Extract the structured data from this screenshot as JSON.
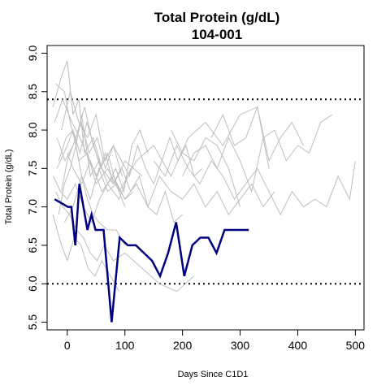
{
  "chart_data": {
    "type": "line",
    "title": "Total Protein (g/dL)",
    "subtitle": "104-001",
    "xlabel": "Days Since C1D1",
    "ylabel": "Total Protein (g/dL)",
    "xlim": [
      -35,
      515
    ],
    "ylim": [
      5.4,
      9.1
    ],
    "xticks": [
      0,
      100,
      200,
      300,
      400,
      500
    ],
    "yticks": [
      5.5,
      6.0,
      6.5,
      7.0,
      7.5,
      8.0,
      8.5,
      9.0
    ],
    "reference_lines": [
      {
        "y": 8.4,
        "style": "dotted",
        "color": "#000080"
      },
      {
        "y": 6.0,
        "style": "dotted",
        "color": "#000080"
      }
    ],
    "highlight_series": {
      "name": "104-001",
      "color": "#000080",
      "x": [
        -22,
        1,
        7,
        14,
        21,
        28,
        35,
        42,
        49,
        63,
        77,
        91,
        105,
        119,
        147,
        161,
        175,
        189,
        203,
        217,
        231,
        245,
        259,
        273,
        315
      ],
      "y": [
        7.1,
        7.0,
        7.0,
        6.5,
        7.3,
        7.0,
        6.7,
        6.9,
        6.7,
        6.7,
        5.5,
        6.6,
        6.5,
        6.5,
        6.3,
        6.1,
        6.4,
        6.8,
        6.1,
        6.5,
        6.6,
        6.6,
        6.4,
        6.7,
        6.7
      ]
    },
    "background_series_color": "#bebebe",
    "background_series": [
      {
        "x": [
          -25,
          -10,
          0,
          10,
          20,
          30,
          45,
          60,
          80,
          100,
          130
        ],
        "y": [
          8.3,
          8.7,
          8.9,
          8.2,
          8.4,
          7.7,
          7.9,
          7.5,
          7.3,
          7.6,
          7.4
        ]
      },
      {
        "x": [
          -20,
          -5,
          5,
          15,
          25,
          40,
          55,
          70,
          90,
          110
        ],
        "y": [
          8.6,
          8.5,
          8.1,
          7.8,
          8.2,
          7.4,
          7.6,
          7.3,
          7.1,
          7.5
        ]
      },
      {
        "x": [
          -18,
          0,
          10,
          20,
          35,
          50,
          70,
          90,
          120,
          150,
          180,
          210,
          240,
          270,
          300,
          330,
          350
        ],
        "y": [
          7.5,
          7.8,
          8.0,
          7.6,
          7.7,
          7.3,
          7.5,
          7.2,
          7.6,
          7.8,
          7.4,
          7.9,
          8.1,
          7.8,
          8.2,
          8.3,
          7.5
        ]
      },
      {
        "x": [
          -15,
          -5,
          5,
          15,
          25,
          35,
          45,
          55,
          70,
          85,
          100
        ],
        "y": [
          6.9,
          7.3,
          7.5,
          7.8,
          7.4,
          7.1,
          6.9,
          6.8,
          6.7,
          6.7,
          6.5
        ]
      },
      {
        "x": [
          -22,
          -8,
          8,
          22,
          38,
          52,
          66,
          80,
          95,
          110,
          125,
          140,
          155,
          170,
          185,
          200
        ],
        "y": [
          8.1,
          8.4,
          8.1,
          7.9,
          7.6,
          7.4,
          7.7,
          7.3,
          7.5,
          7.2,
          7.4,
          7.0,
          6.9,
          7.2,
          6.8,
          6.9
        ]
      },
      {
        "x": [
          -25,
          -10,
          0,
          12,
          24,
          36,
          48,
          60,
          75,
          90
        ],
        "y": [
          6.9,
          6.5,
          6.3,
          6.6,
          6.5,
          6.2,
          6.1,
          6.3,
          6.1,
          5.9
        ]
      },
      {
        "x": [
          -20,
          -8,
          4,
          16,
          28,
          40,
          52,
          64,
          80,
          100,
          130,
          160,
          190,
          220
        ],
        "y": [
          7.2,
          7.0,
          6.9,
          6.7,
          6.6,
          6.4,
          6.3,
          6.5,
          6.3,
          6.4,
          6.2,
          6.0,
          5.9,
          6.1
        ]
      },
      {
        "x": [
          -15,
          -2,
          10,
          22,
          34,
          46,
          58,
          70,
          85,
          100,
          115
        ],
        "y": [
          7.6,
          7.9,
          8.0,
          7.7,
          8.1,
          7.8,
          7.5,
          7.7,
          7.3,
          7.1,
          7.2
        ]
      },
      {
        "x": [
          -24,
          -12,
          0,
          14,
          28,
          42,
          56,
          70,
          84,
          98,
          112,
          126,
          140
        ],
        "y": [
          7.4,
          7.2,
          7.1,
          7.3,
          7.0,
          6.8,
          7.1,
          7.3,
          7.5,
          7.2,
          7.8,
          8.0,
          7.7
        ]
      },
      {
        "x": [
          -10,
          5,
          20,
          35,
          50,
          65,
          80,
          95
        ],
        "y": [
          8.0,
          8.5,
          8.1,
          7.9,
          8.2,
          7.6,
          7.8,
          7.4
        ]
      },
      {
        "x": [
          -18,
          -4,
          10,
          24,
          38,
          52,
          66,
          80,
          94,
          108,
          122,
          136,
          150,
          164,
          178,
          192,
          206,
          220,
          234
        ],
        "y": [
          7.9,
          7.6,
          7.8,
          8.1,
          7.7,
          7.9,
          7.5,
          7.8,
          7.6,
          7.4,
          7.8,
          7.5,
          7.3,
          7.6,
          7.9,
          7.6,
          7.8,
          7.4,
          7.5
        ]
      },
      {
        "x": [
          0,
          10,
          25,
          40,
          60,
          80,
          100,
          120,
          140,
          160,
          180,
          200,
          220,
          240,
          260,
          280,
          300,
          320,
          340,
          360
        ],
        "y": [
          7.7,
          7.5,
          7.3,
          7.6,
          7.2,
          7.4,
          7.1,
          7.3,
          7.0,
          7.4,
          7.2,
          7.1,
          7.3,
          7.0,
          7.2,
          6.9,
          7.1,
          7.3,
          7.0,
          7.2
        ]
      },
      {
        "x": [
          150,
          170,
          190,
          210,
          230,
          250,
          270,
          290,
          310,
          330,
          350,
          370,
          390,
          410,
          430,
          450,
          470,
          490,
          500
        ],
        "y": [
          7.6,
          7.4,
          7.8,
          7.5,
          7.3,
          7.6,
          7.4,
          7.1,
          7.3,
          7.5,
          7.2,
          6.9,
          7.2,
          7.0,
          7.1,
          7.0,
          7.4,
          7.1,
          7.6
        ]
      },
      {
        "x": [
          200,
          220,
          240,
          260,
          280,
          300,
          320,
          340,
          360,
          380,
          400,
          420,
          440,
          460
        ],
        "y": [
          7.4,
          7.7,
          7.8,
          7.5,
          7.9,
          7.6,
          7.2,
          7.9,
          8.0,
          7.6,
          7.8,
          7.7,
          8.1,
          8.2
        ]
      },
      {
        "x": [
          250,
          270,
          290,
          310,
          330,
          350,
          370,
          390,
          410
        ],
        "y": [
          7.9,
          8.2,
          7.8,
          7.9,
          8.3,
          7.6,
          7.9,
          8.1,
          7.8
        ]
      },
      {
        "x": [
          180,
          200,
          220,
          240,
          260,
          280,
          300
        ],
        "y": [
          8.0,
          7.7,
          7.6,
          7.9,
          7.8,
          7.5,
          7.0
        ]
      },
      {
        "x": [
          -5,
          10,
          25,
          40,
          55,
          70,
          85,
          100
        ],
        "y": [
          6.8,
          7.0,
          7.4,
          7.1,
          7.5,
          7.2,
          7.3,
          7.0
        ]
      },
      {
        "x": [
          -10,
          0,
          15,
          30,
          45,
          60
        ],
        "y": [
          7.2,
          7.6,
          7.9,
          8.3,
          7.8,
          7.5
        ]
      }
    ]
  }
}
